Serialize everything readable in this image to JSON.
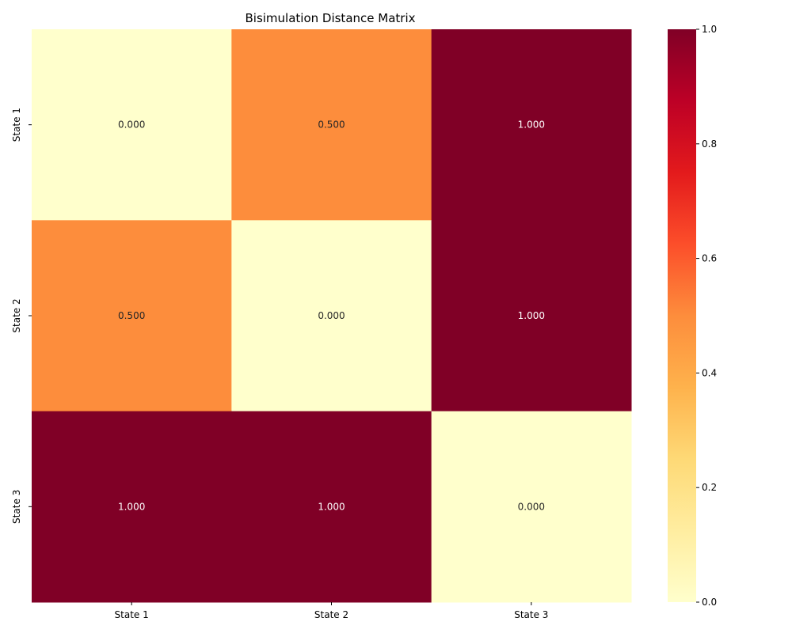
{
  "chart_data": {
    "type": "heatmap",
    "title": "Bisimulation Distance Matrix",
    "x_categories": [
      "State 1",
      "State 2",
      "State 3"
    ],
    "y_categories": [
      "State 1",
      "State 2",
      "State 3"
    ],
    "values": [
      [
        0.0,
        0.5,
        1.0
      ],
      [
        0.5,
        0.0,
        1.0
      ],
      [
        1.0,
        1.0,
        0.0
      ]
    ],
    "value_labels": [
      [
        "0.000",
        "0.500",
        "1.000"
      ],
      [
        "0.500",
        "0.000",
        "1.000"
      ],
      [
        "1.000",
        "1.000",
        "0.000"
      ]
    ],
    "colorscale": "YlOrRd",
    "vmin": 0.0,
    "vmax": 1.0,
    "colorbar": {
      "ticks": [
        0.0,
        0.2,
        0.4,
        0.6,
        0.8,
        1.0
      ],
      "tick_labels": [
        "0.0",
        "0.2",
        "0.4",
        "0.6",
        "0.8",
        "1.0"
      ]
    }
  }
}
